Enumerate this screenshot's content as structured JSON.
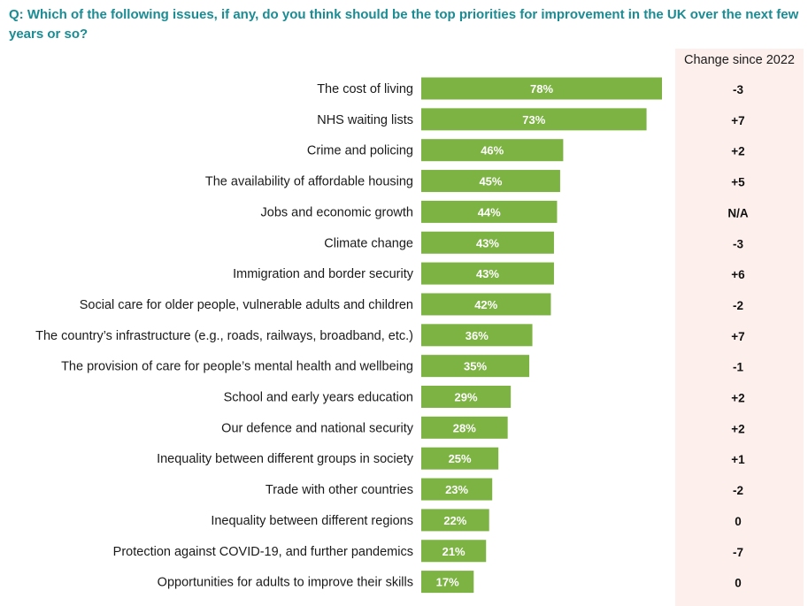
{
  "question": "Q: Which of the following issues, if any, do you think should be the top priorities for improvement in the UK over the next few years or so?",
  "change_header": "Change since 2022",
  "colors": {
    "bar": "#7cb342",
    "title": "#1a8c93",
    "change_bg": "#fdf0ec"
  },
  "chart_data": {
    "type": "bar",
    "orientation": "horizontal",
    "categories": [
      "The cost of living",
      "NHS waiting lists",
      "Crime and policing",
      "The availability of affordable housing",
      "Jobs and economic growth",
      "Climate change",
      "Immigration and border security",
      "Social care for older people, vulnerable adults and children",
      "The country’s infrastructure (e.g., roads, railways, broadband, etc.)",
      "The provision of care for people’s mental health and wellbeing",
      "School and early years education",
      "Our defence and national security",
      "Inequality between different groups in society",
      "Trade with other countries",
      "Inequality between different regions",
      "Protection against COVID-19, and further pandemics",
      "Opportunities for adults to improve their skills"
    ],
    "values": [
      78,
      73,
      46,
      45,
      44,
      43,
      43,
      42,
      36,
      35,
      29,
      28,
      25,
      23,
      22,
      21,
      17
    ],
    "value_labels": [
      "78%",
      "73%",
      "46%",
      "45%",
      "44%",
      "43%",
      "43%",
      "42%",
      "36%",
      "35%",
      "29%",
      "28%",
      "25%",
      "23%",
      "22%",
      "21%",
      "17%"
    ],
    "change_since_2022": [
      "-3",
      "+7",
      "+2",
      "+5",
      "N/A",
      "-3",
      "+6",
      "-2",
      "+7",
      "-1",
      "+2",
      "+2",
      "+1",
      "-2",
      "0",
      "-7",
      "0"
    ],
    "xlim": [
      0,
      78
    ],
    "unit": "%"
  }
}
